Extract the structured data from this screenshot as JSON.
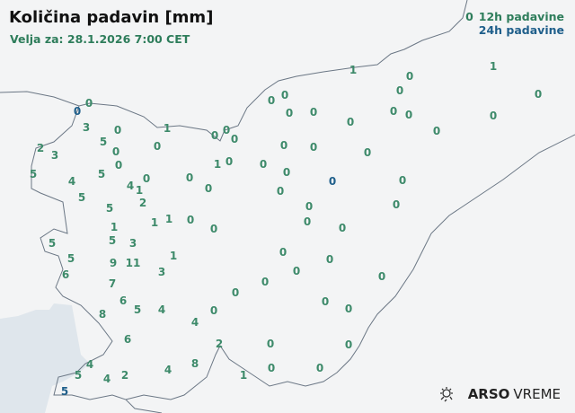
{
  "header": {
    "title": "Količina padavin [mm]",
    "valid": "Velja za: 28.1.2026 7:00 CET"
  },
  "legend": {
    "sample": "0",
    "h12": "12h padavine",
    "h24": "24h padavine"
  },
  "colors": {
    "h12": "#2e7d5b",
    "h24": "#1f5f8b",
    "border": "#6b7785",
    "sea": "#dfe6ec"
  },
  "logo": {
    "brand": "ARSO",
    "product": "VREME",
    "icon": "weather-sun-rain-icon"
  },
  "stations": [
    {
      "v": "0",
      "t": "24h"
    },
    {
      "v": "0",
      "t": "12h"
    },
    {
      "v": "3",
      "t": "12h"
    },
    {
      "v": "0",
      "t": "12h"
    },
    {
      "v": "5",
      "t": "12h"
    },
    {
      "v": "0",
      "t": "12h"
    },
    {
      "v": "2",
      "t": "12h"
    },
    {
      "v": "3",
      "t": "12h"
    },
    {
      "v": "5",
      "t": "12h"
    },
    {
      "v": "4",
      "t": "12h"
    },
    {
      "v": "5",
      "t": "12h"
    },
    {
      "v": "0",
      "t": "12h"
    },
    {
      "v": "4",
      "t": "12h"
    },
    {
      "v": "0",
      "t": "12h"
    },
    {
      "v": "1",
      "t": "12h"
    },
    {
      "v": "2",
      "t": "12h"
    },
    {
      "v": "5",
      "t": "12h"
    },
    {
      "v": "5",
      "t": "12h"
    },
    {
      "v": "1",
      "t": "12h"
    },
    {
      "v": "0",
      "t": "12h"
    },
    {
      "v": "0",
      "t": "12h"
    },
    {
      "v": "0",
      "t": "12h"
    },
    {
      "v": "0",
      "t": "12h"
    },
    {
      "v": "1",
      "t": "12h"
    },
    {
      "v": "0",
      "t": "12h"
    },
    {
      "v": "0",
      "t": "12h"
    },
    {
      "v": "0",
      "t": "12h"
    },
    {
      "v": "0",
      "t": "12h"
    },
    {
      "v": "0",
      "t": "12h"
    },
    {
      "v": "0",
      "t": "12h"
    },
    {
      "v": "1",
      "t": "12h"
    },
    {
      "v": "1",
      "t": "12h"
    },
    {
      "v": "0",
      "t": "12h"
    },
    {
      "v": "0",
      "t": "12h"
    },
    {
      "v": "1",
      "t": "12h"
    },
    {
      "v": "5",
      "t": "12h"
    },
    {
      "v": "3",
      "t": "12h"
    },
    {
      "v": "5",
      "t": "12h"
    },
    {
      "v": "5",
      "t": "12h"
    },
    {
      "v": "6",
      "t": "12h"
    },
    {
      "v": "9",
      "t": "12h"
    },
    {
      "v": "11",
      "t": "12h"
    },
    {
      "v": "1",
      "t": "12h"
    },
    {
      "v": "3",
      "t": "12h"
    },
    {
      "v": "7",
      "t": "12h"
    },
    {
      "v": "6",
      "t": "12h"
    },
    {
      "v": "5",
      "t": "12h"
    },
    {
      "v": "4",
      "t": "12h"
    },
    {
      "v": "8",
      "t": "12h"
    },
    {
      "v": "4",
      "t": "12h"
    },
    {
      "v": "0",
      "t": "12h"
    },
    {
      "v": "0",
      "t": "12h"
    },
    {
      "v": "0",
      "t": "12h"
    },
    {
      "v": "6",
      "t": "12h"
    },
    {
      "v": "2",
      "t": "12h"
    },
    {
      "v": "0",
      "t": "12h"
    },
    {
      "v": "0",
      "t": "12h"
    },
    {
      "v": "8",
      "t": "12h"
    },
    {
      "v": "4",
      "t": "12h"
    },
    {
      "v": "2",
      "t": "12h"
    },
    {
      "v": "4",
      "t": "12h"
    },
    {
      "v": "5",
      "t": "12h"
    },
    {
      "v": "4",
      "t": "12h"
    },
    {
      "v": "5",
      "t": "24h"
    },
    {
      "v": "1",
      "t": "12h"
    },
    {
      "v": "0",
      "t": "12h"
    },
    {
      "v": "0",
      "t": "12h"
    },
    {
      "v": "0",
      "t": "12h"
    },
    {
      "v": "0",
      "t": "12h"
    },
    {
      "v": "0",
      "t": "12h"
    },
    {
      "v": "1",
      "t": "12h"
    },
    {
      "v": "0",
      "t": "12h"
    },
    {
      "v": "0",
      "t": "12h"
    },
    {
      "v": "0",
      "t": "12h"
    },
    {
      "v": "0",
      "t": "12h"
    },
    {
      "v": "0",
      "t": "12h"
    },
    {
      "v": "1",
      "t": "12h"
    },
    {
      "v": "0",
      "t": "12h"
    },
    {
      "v": "0",
      "t": "12h"
    },
    {
      "v": "0",
      "t": "12h"
    },
    {
      "v": "0",
      "t": "12h"
    },
    {
      "v": "0",
      "t": "12h"
    },
    {
      "v": "0",
      "t": "24h"
    },
    {
      "v": "0",
      "t": "12h"
    },
    {
      "v": "0",
      "t": "12h"
    },
    {
      "v": "0",
      "t": "12h"
    },
    {
      "v": "0",
      "t": "12h"
    },
    {
      "v": "0",
      "t": "12h"
    },
    {
      "v": "0",
      "t": "12h"
    },
    {
      "v": "0",
      "t": "12h"
    },
    {
      "v": "0",
      "t": "12h"
    },
    {
      "v": "0",
      "t": "12h"
    },
    {
      "v": "0",
      "t": "12h"
    },
    {
      "v": "0",
      "t": "12h"
    },
    {
      "v": "0",
      "t": "12h"
    },
    {
      "v": "0",
      "t": "12h"
    }
  ]
}
